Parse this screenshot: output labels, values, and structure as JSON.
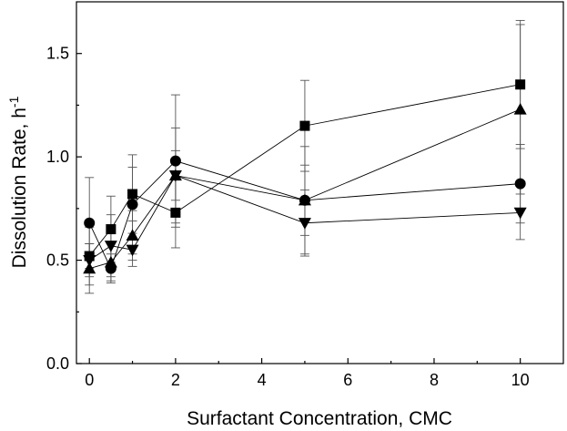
{
  "chart_data": {
    "type": "scatter",
    "xlabel": "Surfactant Concentration, CMC",
    "ylabel": "Dissolution Rate, h",
    "ylabel_superscript": "-1",
    "xlim": [
      -0.3,
      11
    ],
    "ylim": [
      0.0,
      1.75
    ],
    "x_ticks": [
      0,
      2,
      4,
      6,
      8,
      10
    ],
    "y_ticks": [
      0.0,
      0.5,
      1.0,
      1.5
    ],
    "x_tick_labels": [
      "0",
      "2",
      "4",
      "6",
      "8",
      "10"
    ],
    "y_tick_labels": [
      "0.0",
      "0.5",
      "1.0",
      "1.5"
    ],
    "grid": false,
    "legend": "none",
    "series": [
      {
        "marker": "square",
        "x": [
          0,
          0.5,
          1,
          2,
          5,
          10
        ],
        "y": [
          0.52,
          0.65,
          0.82,
          0.73,
          1.15,
          1.35
        ],
        "err": [
          0.14,
          0.16,
          0.13,
          0.17,
          0.22,
          0.31
        ]
      },
      {
        "marker": "circle",
        "x": [
          0,
          0.5,
          1,
          2,
          5,
          10
        ],
        "y": [
          0.68,
          0.46,
          0.77,
          0.98,
          0.79,
          0.87
        ],
        "err": [
          0.22,
          0.07,
          0.24,
          0.32,
          0.17,
          0.19
        ]
      },
      {
        "marker": "triangle-up",
        "x": [
          0,
          0.5,
          1,
          2,
          5,
          10
        ],
        "y": [
          0.46,
          0.49,
          0.62,
          0.91,
          0.79,
          1.23
        ],
        "err": [
          0.12,
          0.09,
          0.12,
          0.23,
          0.26,
          0.41
        ]
      },
      {
        "marker": "triangle-down",
        "x": [
          0,
          0.5,
          1,
          2,
          5,
          10
        ],
        "y": [
          0.5,
          0.57,
          0.55,
          0.91,
          0.68,
          0.73
        ],
        "err": [
          0.08,
          0.15,
          0.08,
          0.12,
          0.16,
          0.13
        ]
      }
    ]
  }
}
